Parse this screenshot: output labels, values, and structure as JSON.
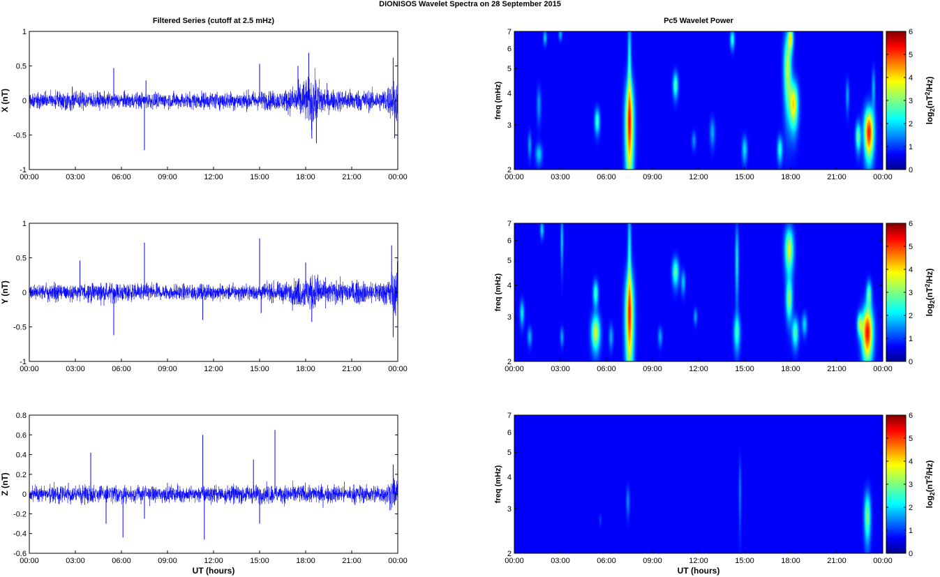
{
  "figure": {
    "title": "DIONISOS Wavelet Spectra on 28 September 2015",
    "left_title": "Filtered Series (cutoff at 2.5 mHz)",
    "right_title": "Pc5 Wavelet Power",
    "xlabel": "UT (hours)",
    "time_ticks": [
      "00:00",
      "03:00",
      "06:00",
      "09:00",
      "12:00",
      "15:00",
      "18:00",
      "21:00",
      "00:00"
    ],
    "freq_label": "freq (mHz)",
    "power_label": "log2(nT2/Hz)",
    "power_label_parts": [
      "log",
      "2",
      "(nT",
      "2",
      "/Hz)"
    ],
    "colorbar_ticks": [
      "0",
      "1",
      "2",
      "3",
      "4",
      "5",
      "6"
    ],
    "colormap": "jet",
    "line_color": "#0000ff"
  },
  "chart_data": [
    {
      "type": "line",
      "component": "X",
      "ylabel": "X (nT)",
      "xlim_hours": [
        0,
        24
      ],
      "ylim": [
        -1,
        1
      ],
      "yticks": [
        "-1",
        "-0.5",
        "0",
        "0.5",
        "1"
      ],
      "noise_envelope_nT": [
        [
          0,
          0.1
        ],
        [
          3,
          0.12
        ],
        [
          5,
          0.1
        ],
        [
          9,
          0.1
        ],
        [
          14.5,
          0.12
        ],
        [
          16.5,
          0.12
        ],
        [
          17.5,
          0.22
        ],
        [
          18.5,
          0.32
        ],
        [
          19.5,
          0.14
        ],
        [
          23,
          0.13
        ],
        [
          24,
          0.3
        ]
      ],
      "spikes": [
        [
          2.8,
          0.2
        ],
        [
          5.5,
          0.47
        ],
        [
          7.5,
          -0.72
        ],
        [
          7.6,
          0.29
        ],
        [
          15,
          0.53
        ],
        [
          17.5,
          0.5
        ],
        [
          18.2,
          0.69
        ],
        [
          18.4,
          -0.55
        ],
        [
          18.7,
          -0.62
        ],
        [
          23.7,
          0.62
        ],
        [
          23.8,
          -0.55
        ],
        [
          24,
          0.5
        ]
      ]
    },
    {
      "type": "line",
      "component": "Y",
      "ylabel": "Y (nT)",
      "xlim_hours": [
        0,
        24
      ],
      "ylim": [
        -1,
        1
      ],
      "yticks": [
        "-1",
        "-0.5",
        "0",
        "0.5",
        "1"
      ],
      "noise_envelope_nT": [
        [
          0,
          0.1
        ],
        [
          3,
          0.12
        ],
        [
          5,
          0.12
        ],
        [
          9,
          0.1
        ],
        [
          14.5,
          0.1
        ],
        [
          16.5,
          0.12
        ],
        [
          17.5,
          0.18
        ],
        [
          18.5,
          0.24
        ],
        [
          19.5,
          0.14
        ],
        [
          23,
          0.14
        ],
        [
          24,
          0.3
        ]
      ],
      "spikes": [
        [
          3.3,
          0.46
        ],
        [
          5.5,
          -0.62
        ],
        [
          7.5,
          0.72
        ],
        [
          11.3,
          -0.4
        ],
        [
          15,
          0.78
        ],
        [
          15.1,
          -0.3
        ],
        [
          18,
          0.43
        ],
        [
          18.4,
          -0.43
        ],
        [
          23.6,
          0.68
        ],
        [
          23.7,
          -0.65
        ]
      ]
    },
    {
      "type": "line",
      "component": "Z",
      "ylabel": "Z (nT)",
      "xlim_hours": [
        0,
        24
      ],
      "ylim": [
        -0.6,
        0.8
      ],
      "yticks": [
        "-0.6",
        "-0.4",
        "-0.2",
        "0",
        "0.2",
        "0.4",
        "0.6",
        "0.8"
      ],
      "noise_envelope_nT": [
        [
          0,
          0.07
        ],
        [
          4,
          0.08
        ],
        [
          9,
          0.07
        ],
        [
          14.5,
          0.08
        ],
        [
          17,
          0.08
        ],
        [
          19,
          0.08
        ],
        [
          23,
          0.08
        ],
        [
          24,
          0.15
        ]
      ],
      "spikes": [
        [
          4,
          0.42
        ],
        [
          5,
          -0.3
        ],
        [
          6.1,
          -0.44
        ],
        [
          7.5,
          -0.25
        ],
        [
          11.3,
          0.6
        ],
        [
          11.4,
          -0.46
        ],
        [
          14.6,
          0.35
        ],
        [
          15,
          -0.3
        ],
        [
          16.0,
          0.65
        ],
        [
          23.7,
          0.3
        ],
        [
          24,
          -0.22
        ]
      ]
    },
    {
      "type": "heatmap",
      "component": "X",
      "xlim_hours": [
        0,
        24
      ],
      "ylim_mHz": [
        2,
        7
      ],
      "y_scale": "log",
      "yticks": [
        "2",
        "3",
        "4",
        "5",
        "6",
        "7"
      ],
      "clim": [
        0,
        6
      ],
      "blobs": [
        {
          "t": 7.5,
          "f": 3.0,
          "dt": 0.2,
          "df": 0.95,
          "v": 4.3
        },
        {
          "t": 7.5,
          "f": 5.3,
          "dt": 0.08,
          "df": 1.8,
          "v": 1.8
        },
        {
          "t": 5.4,
          "f": 3.1,
          "dt": 0.12,
          "df": 0.25,
          "v": 2.2
        },
        {
          "t": 10.5,
          "f": 4.3,
          "dt": 0.12,
          "df": 0.35,
          "v": 2.3
        },
        {
          "t": 14.2,
          "f": 6.5,
          "dt": 0.1,
          "df": 0.4,
          "v": 2.0
        },
        {
          "t": 15.0,
          "f": 2.4,
          "dt": 0.12,
          "df": 0.2,
          "v": 1.6
        },
        {
          "t": 17.3,
          "f": 2.4,
          "dt": 0.12,
          "df": 0.2,
          "v": 2.0
        },
        {
          "t": 17.8,
          "f": 5.0,
          "dt": 0.18,
          "df": 1.2,
          "v": 3.0
        },
        {
          "t": 18.2,
          "f": 3.6,
          "dt": 0.2,
          "df": 0.55,
          "v": 3.6
        },
        {
          "t": 18.0,
          "f": 6.6,
          "dt": 0.12,
          "df": 0.5,
          "v": 3.0
        },
        {
          "t": 22.4,
          "f": 2.7,
          "dt": 0.12,
          "df": 0.25,
          "v": 2.5
        },
        {
          "t": 23.1,
          "f": 2.8,
          "dt": 0.22,
          "df": 0.45,
          "v": 5.0
        },
        {
          "t": 23.4,
          "f": 4.2,
          "dt": 0.08,
          "df": 0.5,
          "v": 1.3
        },
        {
          "t": 1.6,
          "f": 2.3,
          "dt": 0.15,
          "df": 0.15,
          "v": 1.5
        },
        {
          "t": 1.0,
          "f": 2.5,
          "dt": 0.08,
          "df": 0.2,
          "v": 1.2
        },
        {
          "t": 1.6,
          "f": 3.6,
          "dt": 0.1,
          "df": 0.4,
          "v": 1.1
        },
        {
          "t": 2.0,
          "f": 6.6,
          "dt": 0.08,
          "df": 0.3,
          "v": 1.5
        },
        {
          "t": 3.0,
          "f": 6.8,
          "dt": 0.08,
          "df": 0.25,
          "v": 1.3
        },
        {
          "t": 12.9,
          "f": 2.8,
          "dt": 0.12,
          "df": 0.25,
          "v": 1.2
        },
        {
          "t": 11.7,
          "f": 2.6,
          "dt": 0.1,
          "df": 0.15,
          "v": 1.0
        },
        {
          "t": 21.7,
          "f": 3.9,
          "dt": 0.08,
          "df": 0.4,
          "v": 1.2
        }
      ]
    },
    {
      "type": "heatmap",
      "component": "Y",
      "xlim_hours": [
        0,
        24
      ],
      "ylim_mHz": [
        2,
        7
      ],
      "y_scale": "log",
      "yticks": [
        "2",
        "3",
        "4",
        "5",
        "6",
        "7"
      ],
      "clim": [
        0,
        6
      ],
      "blobs": [
        {
          "t": 7.5,
          "f": 3.0,
          "dt": 0.2,
          "df": 0.95,
          "v": 4.2
        },
        {
          "t": 7.5,
          "f": 5.3,
          "dt": 0.08,
          "df": 1.8,
          "v": 1.8
        },
        {
          "t": 5.3,
          "f": 2.6,
          "dt": 0.2,
          "df": 0.3,
          "v": 3.2
        },
        {
          "t": 5.3,
          "f": 3.7,
          "dt": 0.12,
          "df": 0.3,
          "v": 2.2
        },
        {
          "t": 6.3,
          "f": 2.5,
          "dt": 0.1,
          "df": 0.2,
          "v": 1.2
        },
        {
          "t": 10.5,
          "f": 4.5,
          "dt": 0.15,
          "df": 0.4,
          "v": 2.4
        },
        {
          "t": 11.0,
          "f": 4.1,
          "dt": 0.1,
          "df": 0.3,
          "v": 1.4
        },
        {
          "t": 11.8,
          "f": 3.0,
          "dt": 0.08,
          "df": 0.15,
          "v": 1.2
        },
        {
          "t": 14.5,
          "f": 2.6,
          "dt": 0.15,
          "df": 0.3,
          "v": 2.0
        },
        {
          "t": 14.5,
          "f": 5.0,
          "dt": 0.08,
          "df": 1.2,
          "v": 1.7
        },
        {
          "t": 17.9,
          "f": 5.5,
          "dt": 0.2,
          "df": 0.8,
          "v": 3.2
        },
        {
          "t": 17.9,
          "f": 3.5,
          "dt": 0.15,
          "df": 0.45,
          "v": 2.6
        },
        {
          "t": 18.3,
          "f": 2.6,
          "dt": 0.15,
          "df": 0.25,
          "v": 2.3
        },
        {
          "t": 18.9,
          "f": 2.8,
          "dt": 0.12,
          "df": 0.2,
          "v": 1.5
        },
        {
          "t": 22.5,
          "f": 2.8,
          "dt": 0.12,
          "df": 0.2,
          "v": 2.5
        },
        {
          "t": 23.0,
          "f": 2.6,
          "dt": 0.25,
          "df": 0.45,
          "v": 5.1
        },
        {
          "t": 23.1,
          "f": 3.7,
          "dt": 0.12,
          "df": 0.3,
          "v": 2.3
        },
        {
          "t": 0.5,
          "f": 3.1,
          "dt": 0.1,
          "df": 0.25,
          "v": 1.7
        },
        {
          "t": 1.0,
          "f": 2.5,
          "dt": 0.1,
          "df": 0.15,
          "v": 1.3
        },
        {
          "t": 1.8,
          "f": 6.6,
          "dt": 0.08,
          "df": 0.35,
          "v": 1.6
        },
        {
          "t": 3.1,
          "f": 6.0,
          "dt": 0.06,
          "df": 1.0,
          "v": 1.5
        },
        {
          "t": 3.1,
          "f": 2.5,
          "dt": 0.08,
          "df": 0.15,
          "v": 1.2
        },
        {
          "t": 9.5,
          "f": 2.5,
          "dt": 0.1,
          "df": 0.15,
          "v": 1.2
        }
      ]
    },
    {
      "type": "heatmap",
      "component": "Z",
      "xlim_hours": [
        0,
        24
      ],
      "ylim_mHz": [
        2,
        7
      ],
      "y_scale": "log",
      "yticks": [
        "2",
        "3",
        "4",
        "5",
        "6",
        "7"
      ],
      "clim": [
        0,
        6
      ],
      "blobs": [
        {
          "t": 23.0,
          "f": 2.8,
          "dt": 0.15,
          "df": 0.45,
          "v": 2.6
        },
        {
          "t": 7.4,
          "f": 3.2,
          "dt": 0.08,
          "df": 0.3,
          "v": 1.0
        },
        {
          "t": 14.7,
          "f": 3.5,
          "dt": 0.06,
          "df": 0.8,
          "v": 0.9
        },
        {
          "t": 5.6,
          "f": 2.7,
          "dt": 0.06,
          "df": 0.1,
          "v": 0.5
        }
      ]
    }
  ]
}
